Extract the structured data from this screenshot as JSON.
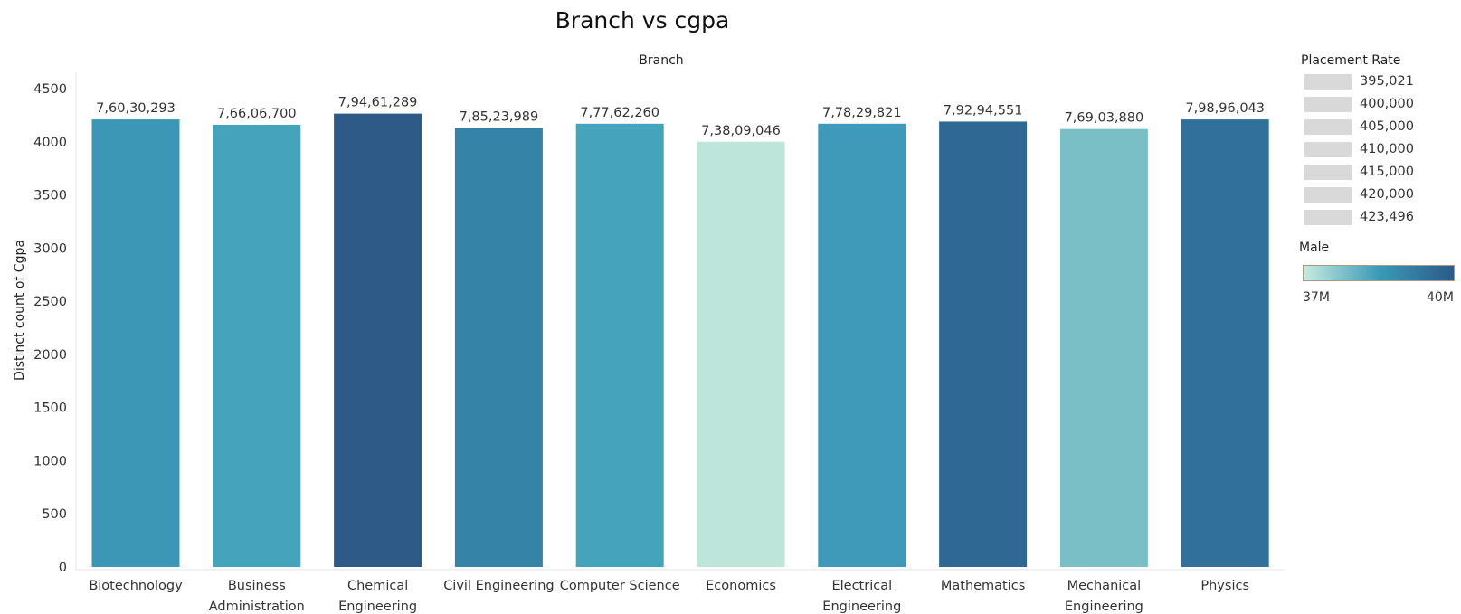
{
  "chart_data": {
    "type": "bar",
    "title": "Branch vs cgpa",
    "xlabel": "Branch",
    "ylabel": "Distinct count of Cgpa",
    "ylim": [
      0,
      4500
    ],
    "yticks": [
      0,
      500,
      1000,
      1500,
      2000,
      2500,
      3000,
      3500,
      4000,
      4500
    ],
    "grid": false,
    "categories": [
      [
        "Biotechnology"
      ],
      [
        "Business",
        "Administration"
      ],
      [
        "Chemical",
        "Engineering"
      ],
      [
        "Civil Engineering"
      ],
      [
        "Computer Science"
      ],
      [
        "Economics"
      ],
      [
        "Electrical",
        "Engineering"
      ],
      [
        "Mathematics"
      ],
      [
        "Mechanical",
        "Engineering"
      ],
      [
        "Physics"
      ]
    ],
    "values": [
      4210,
      4160,
      4265,
      4130,
      4170,
      4000,
      4170,
      4190,
      4120,
      4210
    ],
    "labels": [
      "7,60,30,293",
      "7,66,06,700",
      "7,94,61,289",
      "7,85,23,989",
      "7,77,62,260",
      "7,38,09,046",
      "7,78,29,821",
      "7,92,94,551",
      "7,69,03,880",
      "7,98,96,043"
    ],
    "colors": [
      "#3b97b5",
      "#45a3bb",
      "#2d5a86",
      "#3583a6",
      "#46a3bc",
      "#bde5da",
      "#3f9ab9",
      "#2f6993",
      "#7bbfc6",
      "#30709a"
    ],
    "legend_position": "right"
  },
  "legend": {
    "size_title": "Placement Rate",
    "size_items": [
      "395,021",
      "400,000",
      "405,000",
      "410,000",
      "415,000",
      "420,000",
      "423,496"
    ],
    "color_title": "Male",
    "color_min": "37M",
    "color_max": "40M",
    "ramp_colors": [
      "#c7ebdf",
      "#3b9ab8",
      "#2c5a88"
    ]
  }
}
